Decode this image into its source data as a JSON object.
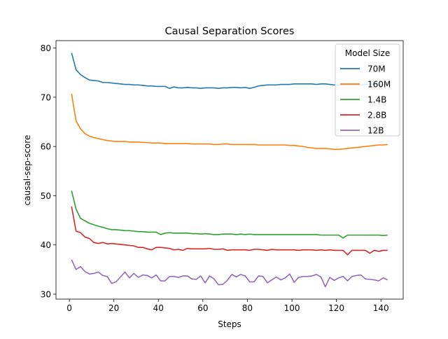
{
  "chart_data": {
    "type": "line",
    "title": "Causal Separation Scores",
    "xlabel": "Steps",
    "ylabel": "causal-sep-score",
    "xlim": [
      -6,
      150
    ],
    "ylim": [
      29,
      81.5
    ],
    "xticks": [
      0,
      20,
      40,
      60,
      80,
      100,
      120,
      140
    ],
    "yticks": [
      30,
      40,
      50,
      60,
      70,
      80
    ],
    "grid": false,
    "legend": {
      "title": "Model Size",
      "placement": "top-right"
    },
    "x": [
      1,
      3,
      5,
      7,
      9,
      11,
      13,
      15,
      17,
      19,
      21,
      23,
      25,
      27,
      29,
      31,
      33,
      35,
      37,
      39,
      41,
      43,
      45,
      47,
      49,
      51,
      53,
      55,
      57,
      59,
      61,
      63,
      65,
      67,
      69,
      71,
      73,
      75,
      77,
      79,
      81,
      83,
      85,
      87,
      89,
      91,
      93,
      95,
      97,
      99,
      101,
      103,
      105,
      107,
      109,
      111,
      113,
      115,
      117,
      119,
      121,
      123,
      125,
      127,
      129,
      131,
      133,
      135,
      137,
      139,
      141,
      143
    ],
    "series": [
      {
        "name": "70M",
        "color": "#1f77b4",
        "values": [
          79.0,
          75.6,
          74.6,
          74.0,
          73.5,
          73.4,
          73.3,
          73.0,
          73.0,
          72.9,
          72.8,
          72.7,
          72.6,
          72.6,
          72.5,
          72.5,
          72.4,
          72.3,
          72.3,
          72.2,
          72.2,
          72.2,
          71.8,
          72.1,
          71.9,
          71.9,
          72.0,
          71.9,
          71.9,
          71.8,
          71.9,
          71.9,
          71.9,
          71.8,
          71.9,
          71.9,
          72.0,
          72.0,
          71.9,
          72.0,
          71.8,
          72.0,
          72.3,
          72.4,
          72.5,
          72.5,
          72.5,
          72.6,
          72.6,
          72.6,
          72.7,
          72.7,
          72.7,
          72.7,
          72.7,
          72.6,
          72.7,
          72.7,
          72.6,
          72.5,
          72.5,
          72.5,
          72.5,
          72.5,
          72.5,
          72.5,
          72.6,
          72.6,
          72.6,
          72.6,
          72.6,
          72.6
        ]
      },
      {
        "name": "160M",
        "color": "#ff7f0e",
        "values": [
          70.7,
          65.2,
          63.6,
          62.6,
          62.1,
          61.8,
          61.6,
          61.4,
          61.2,
          61.1,
          61.0,
          61.0,
          61.0,
          60.9,
          60.9,
          60.9,
          60.8,
          60.8,
          60.7,
          60.7,
          60.7,
          60.6,
          60.6,
          60.6,
          60.6,
          60.6,
          60.6,
          60.5,
          60.5,
          60.5,
          60.5,
          60.5,
          60.4,
          60.4,
          60.5,
          60.5,
          60.4,
          60.4,
          60.4,
          60.4,
          60.4,
          60.4,
          60.3,
          60.3,
          60.3,
          60.3,
          60.3,
          60.3,
          60.3,
          60.2,
          60.2,
          60.1,
          60.0,
          59.8,
          59.7,
          59.6,
          59.6,
          59.6,
          59.5,
          59.4,
          59.4,
          59.5,
          59.6,
          59.7,
          59.8,
          59.9,
          60.0,
          60.1,
          60.2,
          60.3,
          60.3,
          60.4
        ]
      },
      {
        "name": "1.4B",
        "color": "#2ca02c",
        "values": [
          51.0,
          47.3,
          45.4,
          44.9,
          44.4,
          44.1,
          43.8,
          43.6,
          43.3,
          43.1,
          43.1,
          43.0,
          42.9,
          42.9,
          42.8,
          42.7,
          42.7,
          42.6,
          42.6,
          42.6,
          42.1,
          42.4,
          42.5,
          42.4,
          42.4,
          42.4,
          42.4,
          42.3,
          42.3,
          42.2,
          42.3,
          42.2,
          42.1,
          42.1,
          42.2,
          42.2,
          42.2,
          42.1,
          42.2,
          42.1,
          42.2,
          42.1,
          42.1,
          42.1,
          42.1,
          42.1,
          42.1,
          42.1,
          42.1,
          42.1,
          42.1,
          42.1,
          42.1,
          42.1,
          42.1,
          42.1,
          42.0,
          42.0,
          42.0,
          42.0,
          42.0,
          41.4,
          42.0,
          42.0,
          42.0,
          42.0,
          42.0,
          42.0,
          42.0,
          42.0,
          41.9,
          42.0
        ]
      },
      {
        "name": "2.8B",
        "color": "#d62728",
        "values": [
          47.8,
          42.8,
          42.5,
          41.6,
          41.3,
          40.5,
          40.3,
          40.5,
          40.2,
          40.3,
          40.2,
          40.1,
          40.0,
          39.9,
          39.8,
          39.5,
          39.5,
          39.2,
          39.0,
          39.5,
          39.5,
          39.4,
          39.3,
          39.0,
          39.1,
          38.9,
          39.3,
          39.2,
          39.2,
          39.2,
          39.2,
          39.3,
          39.1,
          39.1,
          39.2,
          38.9,
          39.0,
          39.0,
          39.0,
          39.0,
          38.9,
          39.1,
          39.1,
          39.0,
          38.9,
          39.1,
          39.0,
          39.0,
          39.0,
          39.0,
          39.0,
          38.9,
          39.0,
          39.0,
          39.0,
          38.9,
          39.0,
          38.9,
          39.0,
          38.9,
          38.9,
          38.9,
          38.0,
          38.9,
          38.9,
          38.9,
          38.9,
          38.3,
          38.9,
          38.7,
          38.9,
          38.9
        ]
      },
      {
        "name": "12B",
        "color": "#9467bd",
        "values": [
          37.0,
          35.0,
          35.6,
          34.6,
          34.1,
          34.2,
          34.5,
          33.8,
          33.6,
          32.2,
          32.5,
          33.5,
          34.5,
          33.3,
          34.2,
          33.4,
          33.9,
          33.8,
          33.3,
          33.9,
          32.7,
          32.7,
          33.6,
          33.6,
          33.4,
          33.7,
          33.7,
          33.1,
          33.0,
          33.7,
          32.3,
          33.7,
          33.1,
          31.9,
          32.0,
          32.8,
          34.0,
          33.5,
          34.0,
          33.7,
          32.5,
          32.5,
          33.7,
          33.6,
          32.3,
          32.9,
          33.5,
          32.9,
          33.3,
          34.1,
          32.4,
          33.4,
          33.6,
          33.6,
          33.7,
          34.0,
          33.5,
          31.5,
          33.4,
          32.8,
          33.3,
          33.6,
          32.7,
          33.6,
          33.8,
          33.9,
          33.1,
          33.0,
          32.9,
          32.7,
          33.3,
          32.9
        ]
      }
    ]
  }
}
